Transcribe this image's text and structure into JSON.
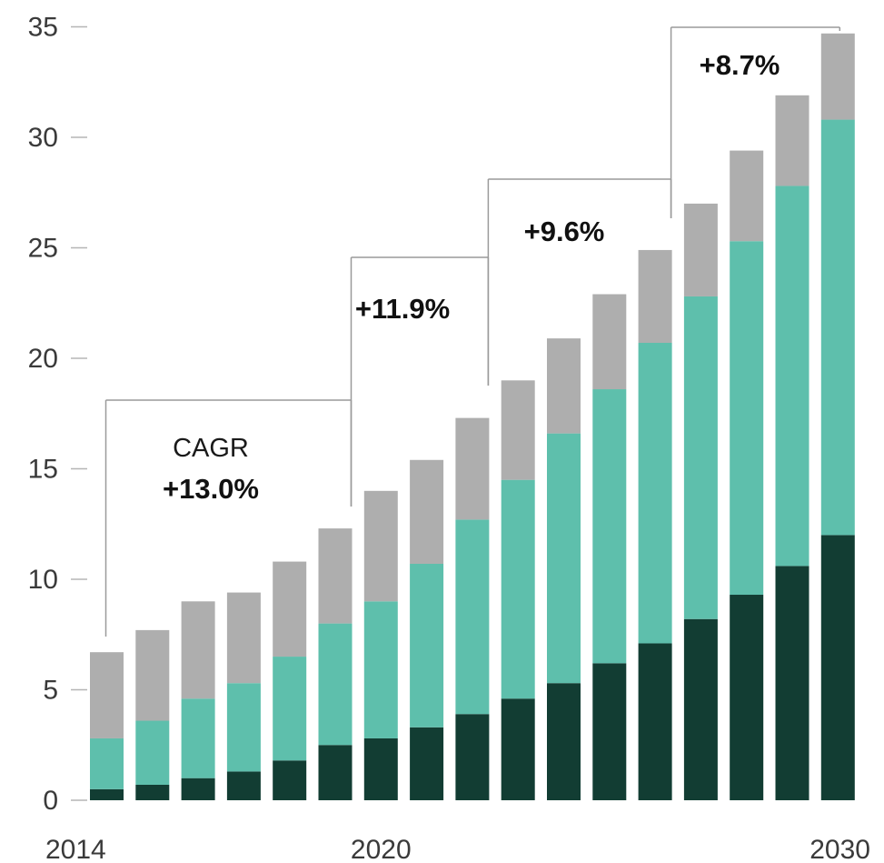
{
  "chart_data": {
    "type": "bar",
    "stacked": true,
    "title": "",
    "xlabel": "",
    "ylabel": "",
    "ylim": [
      0,
      35
    ],
    "yticks": [
      0,
      5,
      10,
      15,
      20,
      25,
      30,
      35
    ],
    "grid": false,
    "x_tick_labels": [
      "2014",
      "2020",
      "2030"
    ],
    "categories": [
      "2014",
      "2015",
      "2016",
      "2017",
      "2018",
      "2019",
      "2020",
      "2021",
      "2022",
      "2023",
      "2024",
      "2025",
      "2026",
      "2027",
      "2028",
      "2029",
      "2030"
    ],
    "series": [
      {
        "color": "#123d33",
        "values": [
          0.5,
          0.7,
          1.0,
          1.3,
          1.8,
          2.5,
          2.8,
          3.3,
          3.9,
          4.6,
          5.3,
          6.2,
          7.1,
          8.2,
          9.3,
          10.6,
          12.0
        ]
      },
      {
        "color": "#5ebfac",
        "values": [
          2.3,
          2.9,
          3.6,
          4.0,
          4.7,
          5.5,
          6.2,
          7.4,
          8.8,
          9.9,
          11.3,
          12.4,
          13.6,
          14.6,
          16.0,
          17.2,
          18.8
        ]
      },
      {
        "color": "#aeaeae",
        "values": [
          3.9,
          4.1,
          4.4,
          4.1,
          4.3,
          4.3,
          5.0,
          4.7,
          4.6,
          4.5,
          4.3,
          4.3,
          4.2,
          4.2,
          4.1,
          4.1,
          3.9
        ]
      }
    ],
    "annotations": [
      {
        "label": "CAGR",
        "value": "+13.0%",
        "from": "2014",
        "to": "2019"
      },
      {
        "label": "",
        "value": "+11.9%",
        "from": "2019",
        "to": "2022"
      },
      {
        "label": "",
        "value": "+9.6%",
        "from": "2022",
        "to": "2026"
      },
      {
        "label": "",
        "value": "+8.7%",
        "from": "2026",
        "to": "2030"
      }
    ]
  }
}
